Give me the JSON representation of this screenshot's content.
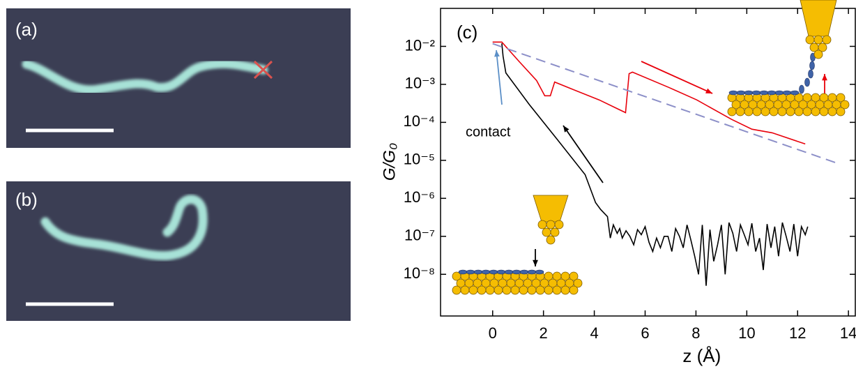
{
  "panels": [
    {
      "label": "(a)"
    },
    {
      "label": "(b)"
    }
  ],
  "chart_data": {
    "type": "line",
    "panel_label": "(c)",
    "annotation": "contact",
    "xlabel": "z (Å)",
    "ylabel": "G/G₀",
    "log_y": true,
    "xlim": [
      -2.05,
      14.27
    ],
    "xticks": [
      0,
      2,
      4,
      6,
      8,
      10,
      12,
      14
    ],
    "ylim": [
      8e-10,
      0.1
    ],
    "yticks": [
      {
        "value": 1e-08,
        "label": "10⁻⁸"
      },
      {
        "value": 1e-07,
        "label": "10⁻⁷"
      },
      {
        "value": 1e-06,
        "label": "10⁻⁶"
      },
      {
        "value": 1e-05,
        "label": "10⁻⁵"
      },
      {
        "value": 0.0001,
        "label": "10⁻⁴"
      },
      {
        "value": 0.001,
        "label": "10⁻³"
      },
      {
        "value": 0.01,
        "label": "10⁻²"
      }
    ],
    "series": [
      {
        "color": "#000000",
        "dashed": false,
        "x": [
          0.36,
          0.41,
          0.52,
          1.45,
          2.55,
          3.64,
          4.05,
          4.25,
          4.52,
          4.63,
          4.75,
          4.9,
          5.0,
          5.1,
          5.25,
          5.4,
          5.55,
          5.7,
          5.85,
          6.0,
          6.15,
          6.3,
          6.45,
          6.6,
          6.75,
          6.9,
          7.05,
          7.2,
          7.35,
          7.5,
          7.65,
          7.8,
          7.95,
          8.1,
          8.25,
          8.4,
          8.55,
          8.7,
          8.85,
          9.0,
          9.15,
          9.3,
          9.45,
          9.6,
          9.75,
          9.9,
          10.05,
          10.2,
          10.35,
          10.5,
          10.65,
          10.8,
          10.95,
          11.1,
          11.25,
          11.4,
          11.55,
          11.7,
          11.85,
          12.0,
          12.15,
          12.3,
          12.4
        ],
        "values": [
          0.012,
          0.0055,
          0.002,
          0.00029,
          3.5e-05,
          4.2e-06,
          7.7e-07,
          5.1e-07,
          3.3e-07,
          9e-08,
          2e-07,
          1.2e-07,
          1.6e-07,
          9e-08,
          1.4e-07,
          1e-07,
          6e-08,
          1.5e-07,
          1.1e-07,
          1.8e-07,
          7e-08,
          4e-08,
          9e-08,
          5e-08,
          1e-07,
          1e-07,
          4e-08,
          1.6e-07,
          1e-07,
          5e-08,
          2e-07,
          8e-08,
          3e-08,
          1e-08,
          2e-07,
          5e-09,
          1.5e-07,
          2.2e-08,
          6e-08,
          2e-07,
          1e-08,
          2.3e-07,
          1.2e-07,
          4e-08,
          2e-07,
          1.1e-07,
          6e-08,
          2.2e-07,
          4e-08,
          9e-08,
          1.3e-08,
          2.1e-07,
          5e-08,
          1.8e-07,
          3e-08,
          2.3e-07,
          1e-07,
          4e-08,
          2.1e-07,
          3e-08,
          1.8e-07,
          1.1e-07,
          1.8e-07
        ]
      },
      {
        "color": "#e8000b",
        "dashed": false,
        "x": [
          0,
          0.36,
          1.04,
          1.73,
          1.95,
          2.05,
          2.27,
          2.44,
          3.1,
          4.19,
          5.23,
          5.37,
          5.5,
          6.93,
          8.03,
          9.4,
          10.2,
          11.0,
          12.3
        ],
        "values": [
          0.013,
          0.013,
          0.004,
          0.00126,
          0.00067,
          0.0005,
          0.0005,
          0.00115,
          0.00076,
          0.00039,
          0.00018,
          0.0019,
          0.0021,
          0.00083,
          0.00039,
          0.00012,
          6.6e-05,
          5.3e-05,
          2.7e-05
        ]
      },
      {
        "color": "#8c8fc8",
        "dashed": true,
        "x": [
          0,
          13.5
        ],
        "values": [
          0.0118,
          8.7e-06
        ]
      }
    ]
  }
}
